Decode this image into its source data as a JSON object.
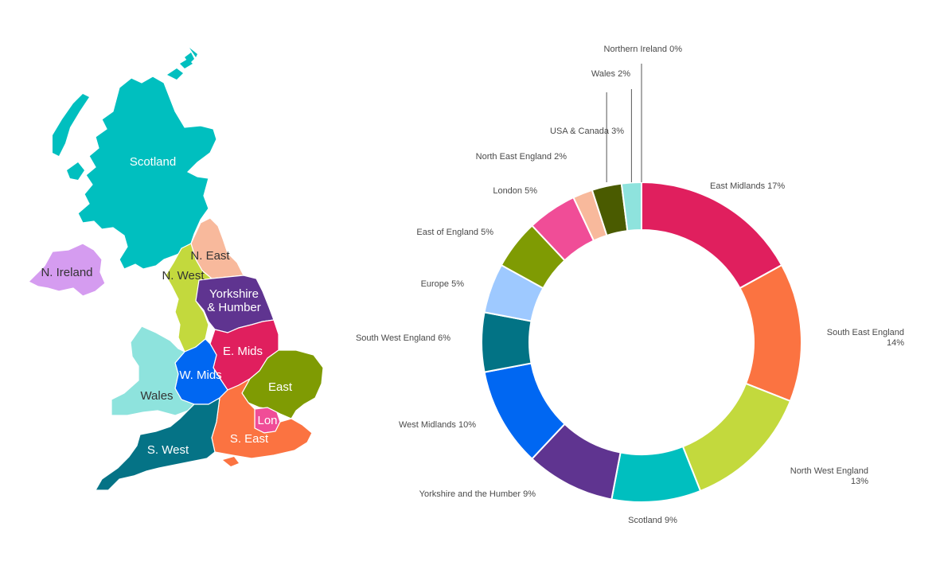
{
  "map": {
    "regions": [
      {
        "id": "scotland",
        "label": "Scotland",
        "color": "#00bfbf"
      },
      {
        "id": "n-ireland",
        "label": "N. Ireland",
        "color": "#d59cf0"
      },
      {
        "id": "n-east",
        "label": "N. East",
        "color": "#f8b99c"
      },
      {
        "id": "n-west",
        "label": "N. West",
        "color": "#c3d93d"
      },
      {
        "id": "yorkshire",
        "label": "Yorkshire",
        "label2": "& Humber",
        "color": "#5f3490"
      },
      {
        "id": "e-mids",
        "label": "E. Mids",
        "color": "#e01f5e"
      },
      {
        "id": "w-mids",
        "label": "W. Mids",
        "color": "#0067f2"
      },
      {
        "id": "wales",
        "label": "Wales",
        "color": "#8ee3dd"
      },
      {
        "id": "east",
        "label": "East",
        "color": "#7f9b03"
      },
      {
        "id": "london",
        "label": "Lon",
        "color": "#f04d97"
      },
      {
        "id": "s-east",
        "label": "S. East",
        "color": "#fb7341"
      },
      {
        "id": "s-west",
        "label": "S. West",
        "color": "#057386"
      }
    ]
  },
  "chart_data": {
    "type": "pie",
    "subtype": "donut",
    "slices": [
      {
        "label": "East Midlands 17%",
        "name": "East Midlands",
        "value": 17,
        "color": "#e01f5e"
      },
      {
        "label": "South East England 14%",
        "label_lines": [
          "South East England",
          "14%"
        ],
        "name": "South East England",
        "value": 14,
        "color": "#fb7341"
      },
      {
        "label": "North West England 13%",
        "label_lines": [
          "North West England",
          "13%"
        ],
        "name": "North West England",
        "value": 13,
        "color": "#c3d93d"
      },
      {
        "label": "Scotland 9%",
        "name": "Scotland",
        "value": 9,
        "color": "#00bfbf"
      },
      {
        "label": "Yorkshire and the Humber 9%",
        "name": "Yorkshire and the Humber",
        "value": 9,
        "color": "#5f3490"
      },
      {
        "label": "West Midlands 10%",
        "name": "West Midlands",
        "value": 10,
        "color": "#0067f2"
      },
      {
        "label": "South West England 6%",
        "name": "South West England",
        "value": 6,
        "color": "#027385"
      },
      {
        "label": "Europe 5%",
        "name": "Europe",
        "value": 5,
        "color": "#9ec9ff"
      },
      {
        "label": "East of England 5%",
        "name": "East of England",
        "value": 5,
        "color": "#7f9b03"
      },
      {
        "label": "London 5%",
        "name": "London",
        "value": 5,
        "color": "#f04d97"
      },
      {
        "label": "North East England 2%",
        "name": "North East England",
        "value": 2,
        "color": "#f8b99c"
      },
      {
        "label": "USA & Canada 3%",
        "name": "USA & Canada",
        "value": 3,
        "color": "#4a5b00"
      },
      {
        "label": "Wales 2%",
        "name": "Wales",
        "value": 2,
        "color": "#8ee3dd"
      },
      {
        "label": "Northern Ireland 0%",
        "name": "Northern Ireland",
        "value": 0,
        "color": "#d59cf0"
      }
    ]
  }
}
